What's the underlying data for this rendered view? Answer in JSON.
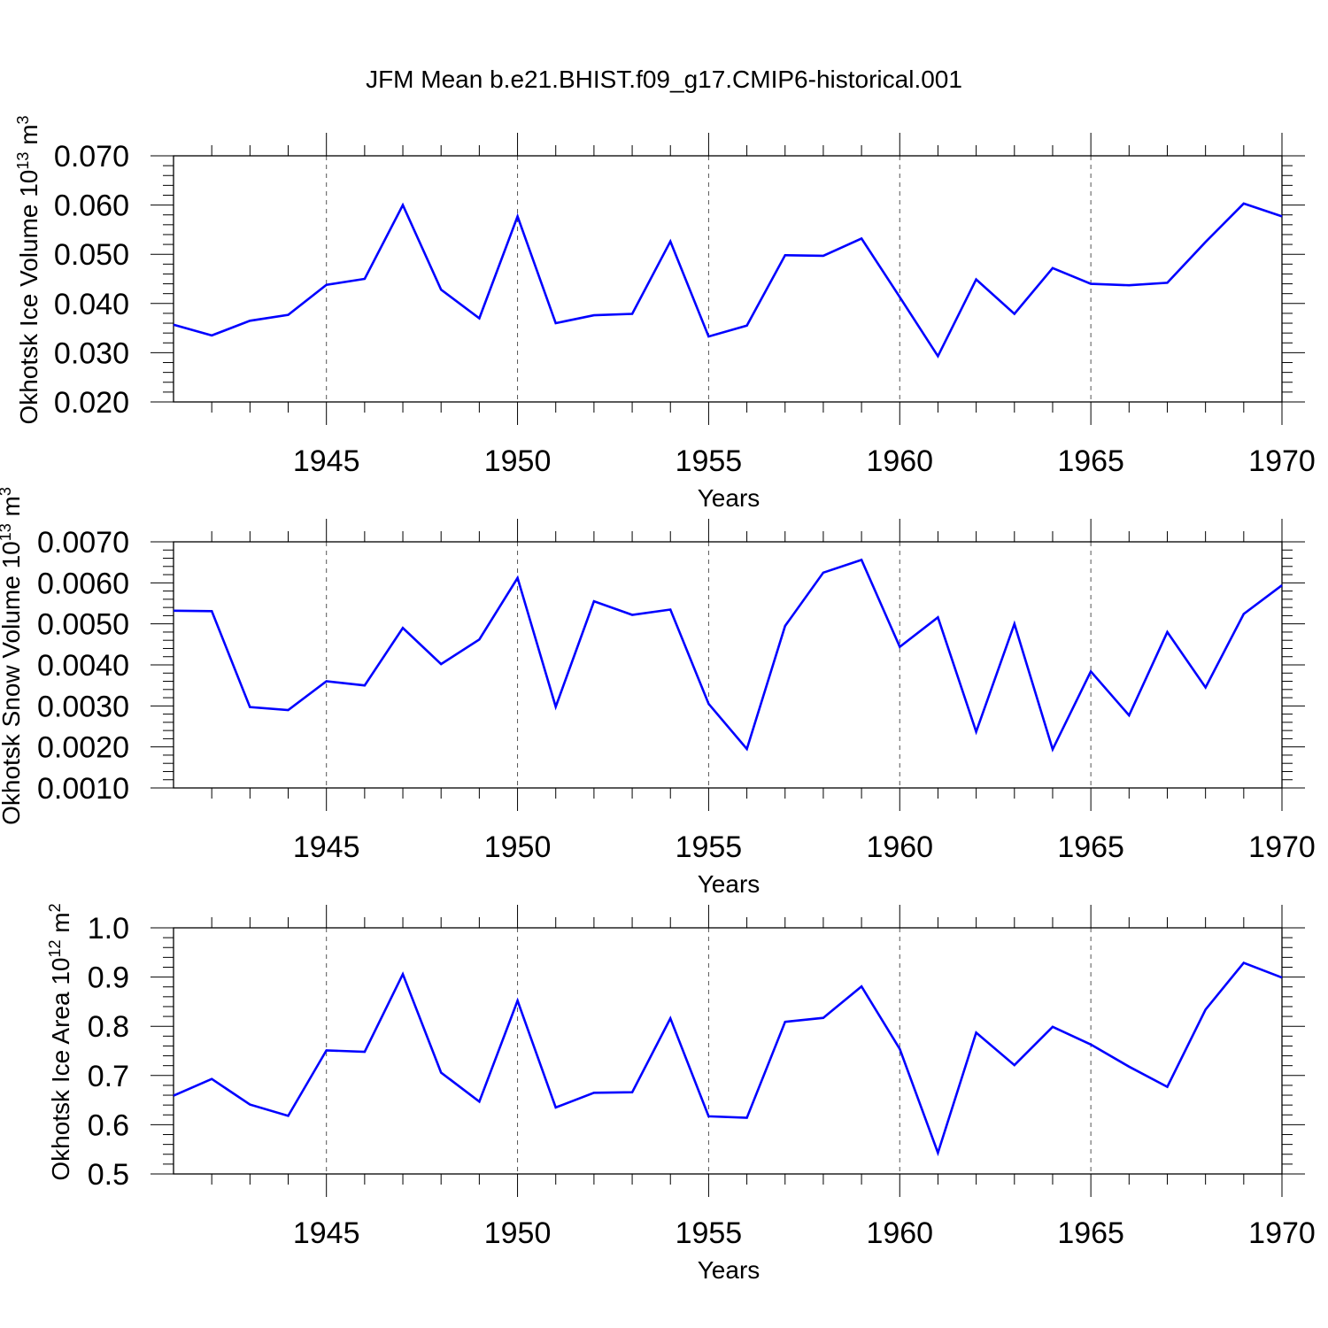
{
  "title": "JFM Mean b.e21.BHIST.f09_g17.CMIP6-historical.001",
  "chart_data": [
    {
      "type": "line",
      "ylabel": "Okhotsk Ice Volume 10",
      "ylabel_exp": "13",
      "ylabel_unit": " m",
      "ylabel_unit_exp": "3",
      "xlabel": "Years",
      "xlim": [
        1941,
        1970
      ],
      "ylim": [
        0.02,
        0.07
      ],
      "xticks": [
        "1945",
        "1950",
        "1955",
        "1960",
        "1965",
        "1970"
      ],
      "yticks": [
        "0.020",
        "0.030",
        "0.040",
        "0.050",
        "0.060",
        "0.070"
      ],
      "series": [
        {
          "name": "Okhotsk Ice Volume",
          "color": "#0000ff",
          "x": [
            1941,
            1942,
            1943,
            1944,
            1945,
            1946,
            1947,
            1948,
            1949,
            1950,
            1951,
            1952,
            1953,
            1954,
            1955,
            1956,
            1957,
            1958,
            1959,
            1960,
            1961,
            1962,
            1963,
            1964,
            1965,
            1966,
            1967,
            1968,
            1969,
            1970
          ],
          "values": [
            0.0357,
            0.0335,
            0.0365,
            0.0377,
            0.0438,
            0.045,
            0.06,
            0.0428,
            0.037,
            0.0577,
            0.036,
            0.0376,
            0.0379,
            0.0526,
            0.0333,
            0.0355,
            0.0498,
            0.0497,
            0.0532,
            0.0413,
            0.0293,
            0.0449,
            0.0379,
            0.0472,
            0.044,
            0.0437,
            0.0442,
            0.0525,
            0.0603,
            0.0577
          ]
        }
      ]
    },
    {
      "type": "line",
      "ylabel": "Okhotsk Snow Volume 10",
      "ylabel_exp": "13",
      "ylabel_unit": " m",
      "ylabel_unit_exp": "3",
      "xlabel": "Years",
      "xlim": [
        1941,
        1970
      ],
      "ylim": [
        0.001,
        0.007
      ],
      "xticks": [
        "1945",
        "1950",
        "1955",
        "1960",
        "1965",
        "1970"
      ],
      "yticks": [
        "0.0010",
        "0.0020",
        "0.0030",
        "0.0040",
        "0.0050",
        "0.0060",
        "0.0070"
      ],
      "series": [
        {
          "name": "Okhotsk Snow Volume",
          "color": "#0000ff",
          "x": [
            1941,
            1942,
            1943,
            1944,
            1945,
            1946,
            1947,
            1948,
            1949,
            1950,
            1951,
            1952,
            1953,
            1954,
            1955,
            1956,
            1957,
            1958,
            1959,
            1960,
            1961,
            1962,
            1963,
            1964,
            1965,
            1966,
            1967,
            1968,
            1969,
            1970
          ],
          "values": [
            0.00532,
            0.00531,
            0.00297,
            0.0029,
            0.0036,
            0.0035,
            0.0049,
            0.00402,
            0.00462,
            0.00612,
            0.00298,
            0.00555,
            0.00522,
            0.00535,
            0.00305,
            0.00195,
            0.00495,
            0.00625,
            0.00656,
            0.00444,
            0.00516,
            0.00237,
            0.005,
            0.00194,
            0.00384,
            0.00277,
            0.0048,
            0.00345,
            0.00524,
            0.00594
          ]
        }
      ]
    },
    {
      "type": "line",
      "ylabel": "Okhotsk Ice Area 10",
      "ylabel_exp": "12",
      "ylabel_unit": " m",
      "ylabel_unit_exp": "2",
      "xlabel": "Years",
      "xlim": [
        1941,
        1970
      ],
      "ylim": [
        0.5,
        1.0
      ],
      "xticks": [
        "1945",
        "1950",
        "1955",
        "1960",
        "1965",
        "1970"
      ],
      "yticks": [
        "0.5",
        "0.6",
        "0.7",
        "0.8",
        "0.9",
        "1.0"
      ],
      "series": [
        {
          "name": "Okhotsk Ice Area",
          "color": "#0000ff",
          "x": [
            1941,
            1942,
            1943,
            1944,
            1945,
            1946,
            1947,
            1948,
            1949,
            1950,
            1951,
            1952,
            1953,
            1954,
            1955,
            1956,
            1957,
            1958,
            1959,
            1960,
            1961,
            1962,
            1963,
            1964,
            1965,
            1966,
            1967,
            1968,
            1969,
            1970
          ],
          "values": [
            0.659,
            0.693,
            0.641,
            0.618,
            0.751,
            0.748,
            0.906,
            0.706,
            0.647,
            0.852,
            0.635,
            0.665,
            0.666,
            0.816,
            0.617,
            0.614,
            0.809,
            0.817,
            0.881,
            0.754,
            0.543,
            0.787,
            0.721,
            0.799,
            0.763,
            0.718,
            0.677,
            0.834,
            0.929,
            0.899
          ]
        }
      ]
    }
  ]
}
